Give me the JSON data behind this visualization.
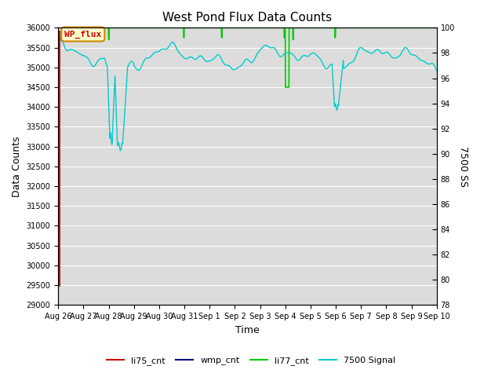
{
  "title": "West Pond Flux Data Counts",
  "xlabel": "Time",
  "ylabel": "Data Counts",
  "ylabel_right": "7500 SS",
  "ylim_left": [
    29000,
    36000
  ],
  "ylim_right": [
    78,
    100
  ],
  "yticks_left": [
    29000,
    29500,
    30000,
    30500,
    31000,
    31500,
    32000,
    32500,
    33000,
    33500,
    34000,
    34500,
    35000,
    35500,
    36000
  ],
  "yticks_right": [
    78,
    80,
    82,
    84,
    86,
    88,
    90,
    92,
    94,
    96,
    98,
    100
  ],
  "xtick_labels": [
    "Aug 26",
    "Aug 27",
    "Aug 28",
    "Aug 29",
    "Aug 30",
    "Aug 31",
    "Sep 1",
    "Sep 2",
    "Sep 3",
    "Sep 4",
    "Sep 5",
    "Sep 6",
    "Sep 7",
    "Sep 8",
    "Sep 9",
    "Sep 10"
  ],
  "bg_color": "#dcdcdc",
  "fig_color": "#ffffff",
  "legend_labels": [
    "li75_cnt",
    "wmp_cnt",
    "li77_cnt",
    "7500 Signal"
  ],
  "legend_colors": [
    "#cc0000",
    "#000080",
    "#00cc00",
    "#00cccc"
  ],
  "annotation_text": "WP_flux",
  "annotation_color": "#cc0000",
  "annotation_bg": "#ffffcc",
  "annotation_border": "#cc8800",
  "title_fontsize": 11,
  "tick_fontsize": 7,
  "label_fontsize": 9
}
